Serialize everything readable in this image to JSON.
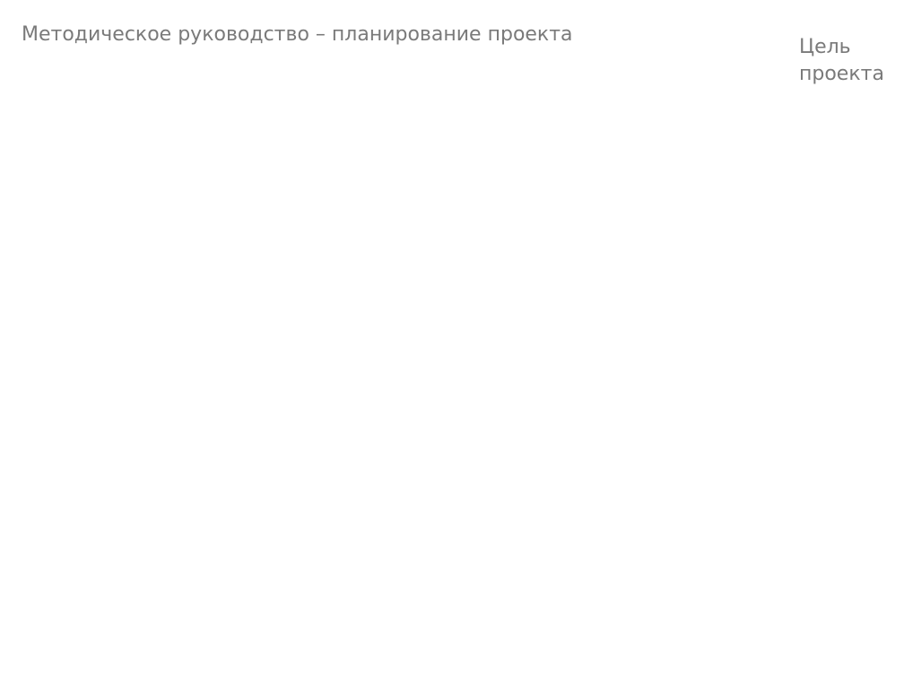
{
  "chart_data": {
    "type": "gantt",
    "title": "Методическое руководство – планирование проекта",
    "goal_label": "Цель проекта"
  }
}
